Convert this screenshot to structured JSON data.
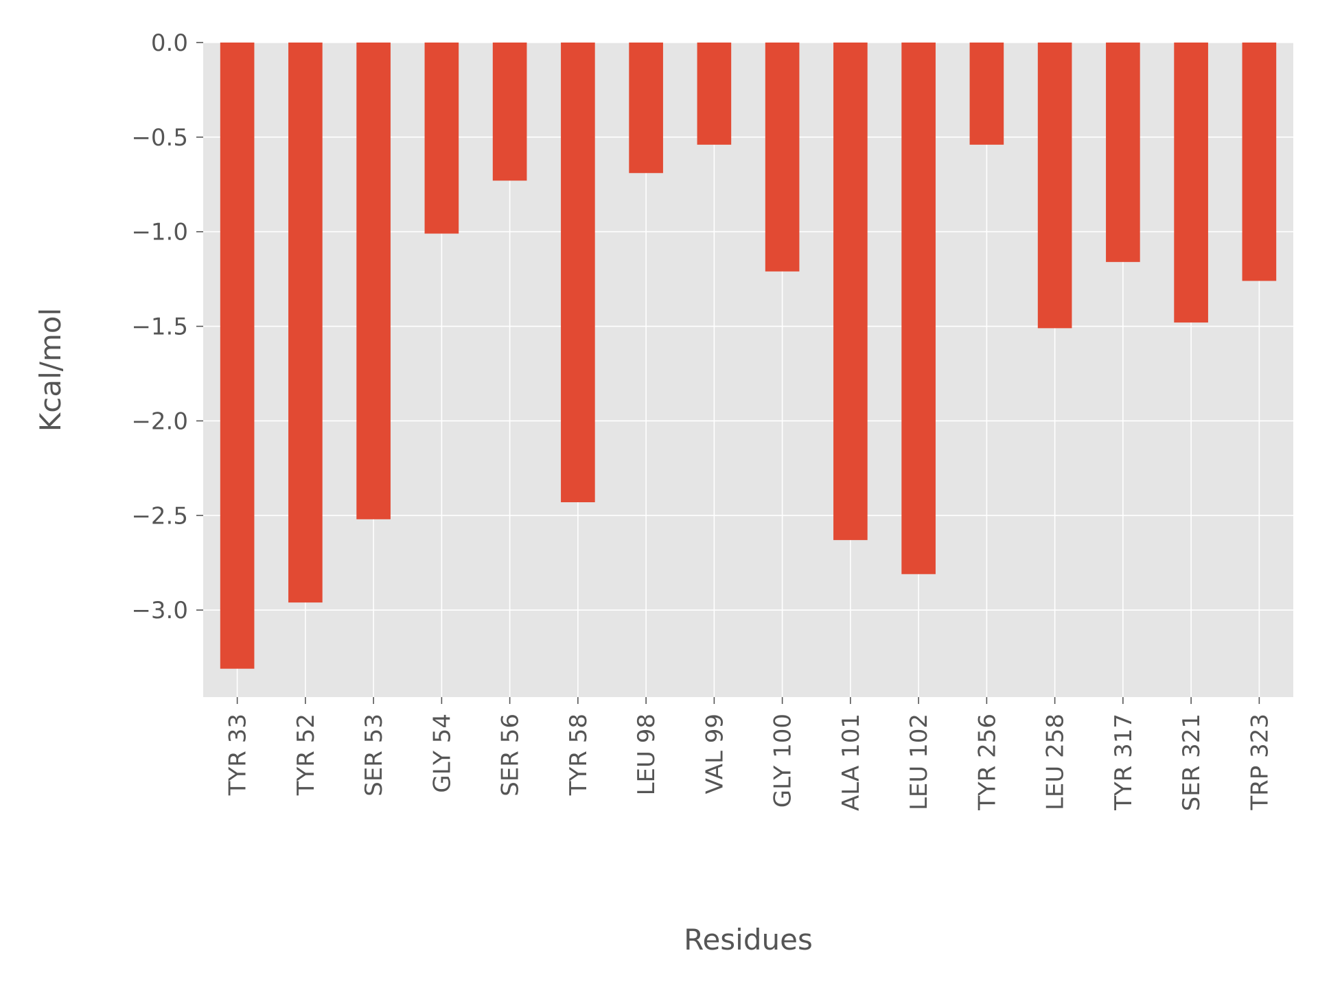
{
  "chart_data": {
    "type": "bar",
    "xlabel": "Residues",
    "ylabel": "Kcal/mol",
    "ylim": [
      -3.46,
      0.0
    ],
    "yticks": [
      0.0,
      -0.5,
      -1.0,
      -1.5,
      -2.0,
      -2.5,
      -3.0
    ],
    "ytick_labels": [
      "0.0",
      "−0.5",
      "−1.0",
      "−1.5",
      "−2.0",
      "−2.5",
      "−3.0"
    ],
    "grid": true,
    "bar_color": "#E24A33",
    "background_color": "#E5E5E5",
    "grid_color": "#FFFFFF",
    "categories": [
      "TYR 33",
      "TYR 52",
      "SER 53",
      "GLY 54",
      "SER 56",
      "TYR 58",
      "LEU 98",
      "VAL 99",
      "GLY 100",
      "ALA 101",
      "LEU 102",
      "TYR 256",
      "LEU 258",
      "TYR 317",
      "SER 321",
      "TRP 323"
    ],
    "values": [
      -3.31,
      -2.96,
      -2.52,
      -1.01,
      -0.73,
      -2.43,
      -0.69,
      -0.54,
      -1.21,
      -2.63,
      -2.81,
      -0.54,
      -1.51,
      -1.16,
      -1.48,
      -1.26
    ]
  }
}
